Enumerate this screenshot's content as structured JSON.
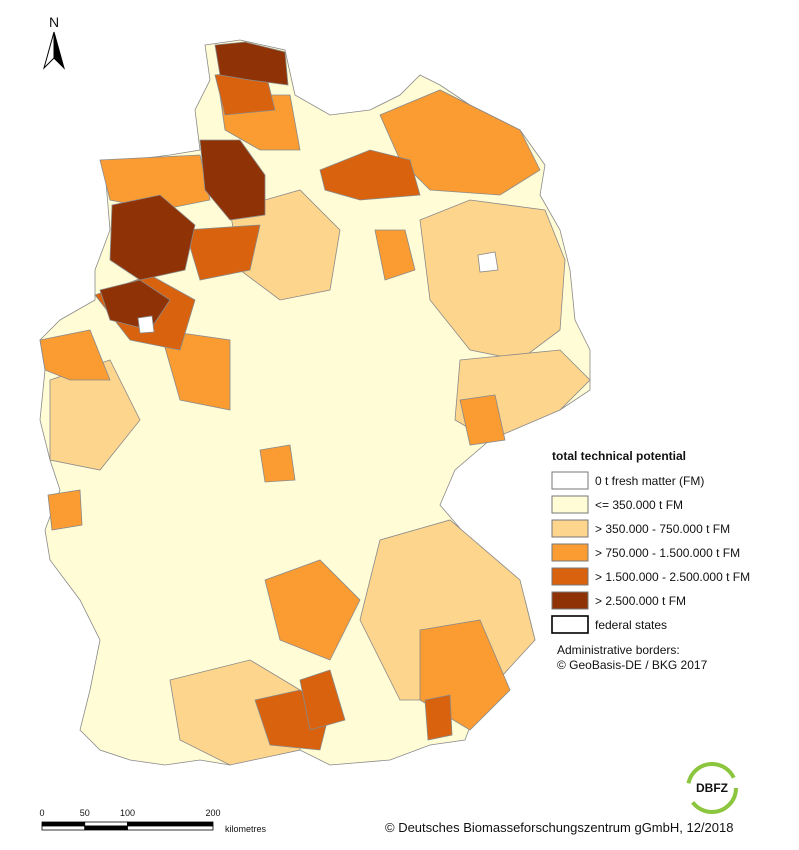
{
  "north": "N",
  "legend": {
    "title": "total technical potential",
    "items": [
      {
        "label": "0 t fresh matter (FM)",
        "color": "#ffffff"
      },
      {
        "label": "<= 350.000 t FM",
        "color": "#fffcd6"
      },
      {
        "label": "> 350.000 - 750.000 t FM",
        "color": "#fed58c"
      },
      {
        "label": "> 750.000 - 1.500.000 t FM",
        "color": "#fb9c32"
      },
      {
        "label": "> 1.500.000 - 2.500.000 t FM",
        "color": "#d9620f"
      },
      {
        "label": "> 2.500.000 t FM",
        "color": "#8f3306"
      },
      {
        "label": "federal states",
        "color": "#ffffff"
      }
    ]
  },
  "note": [
    "Administrative borders:",
    "© GeoBasis-DE / BKG 2017"
  ],
  "scale": {
    "ticks": [
      0,
      50,
      100,
      200
    ],
    "unit": "kilometres"
  },
  "logo": "DBFZ",
  "credit": "© Deutsches Biomasseforschungszentrum gGmbH, 12/2018"
}
